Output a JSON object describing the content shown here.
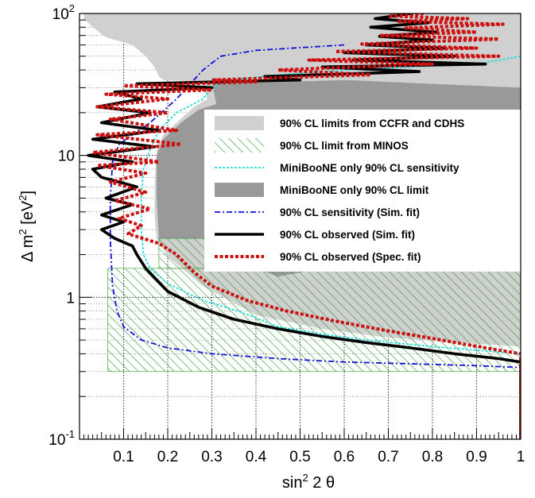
{
  "chart_data": {
    "type": "line",
    "xlabel_main": "sin",
    "xlabel_sup": "2",
    "xlabel_tail": " 2 θ",
    "ylabel_main": "Δ m",
    "ylabel_sup1": "2",
    "ylabel_mid": " [eV",
    "ylabel_sup2": "2",
    "ylabel_end": "]",
    "xlim": [
      0,
      1
    ],
    "ylim": [
      0.1,
      100
    ],
    "yscale": "log",
    "grid": true,
    "legend_position": "right",
    "x_ticks": [
      {
        "value": 0.1,
        "label": "0.1"
      },
      {
        "value": 0.2,
        "label": "0.2"
      },
      {
        "value": 0.3,
        "label": "0.3"
      },
      {
        "value": 0.4,
        "label": "0.4"
      },
      {
        "value": 0.5,
        "label": "0.5"
      },
      {
        "value": 0.6,
        "label": "0.6"
      },
      {
        "value": 0.7,
        "label": "0.7"
      },
      {
        "value": 0.8,
        "label": "0.8"
      },
      {
        "value": 0.9,
        "label": "0.9"
      },
      {
        "value": 1.0,
        "label": "1"
      }
    ],
    "y_ticks": [
      {
        "value": 0.1,
        "base": "10",
        "exp": "-1"
      },
      {
        "value": 1,
        "base": "1",
        "exp": ""
      },
      {
        "value": 10,
        "base": "10",
        "exp": ""
      },
      {
        "value": 100,
        "base": "10",
        "exp": "2"
      }
    ],
    "regions": [
      {
        "name": "90% CL limits from CCFR and CDHS",
        "color": "#d0d0d0",
        "polygon": [
          [
            0.01,
            100
          ],
          [
            0.01,
            92
          ],
          [
            0.03,
            80
          ],
          [
            0.06,
            68
          ],
          [
            0.12,
            60
          ],
          [
            0.15,
            50
          ],
          [
            0.17,
            42
          ],
          [
            0.18,
            36
          ],
          [
            0.19,
            34
          ],
          [
            0.3,
            33
          ],
          [
            0.28,
            31
          ],
          [
            0.29,
            25
          ],
          [
            0.26,
            22
          ],
          [
            0.22,
            17
          ],
          [
            0.19,
            14
          ],
          [
            0.175,
            11
          ],
          [
            0.17,
            6
          ],
          [
            0.17,
            3.8
          ],
          [
            0.175,
            2.6
          ],
          [
            0.2,
            1.95
          ],
          [
            0.28,
            1.2
          ],
          [
            0.4,
            0.75
          ],
          [
            0.55,
            0.6
          ],
          [
            0.7,
            0.52
          ],
          [
            0.85,
            0.48
          ],
          [
            1,
            0.45
          ],
          [
            1,
            100
          ]
        ]
      },
      {
        "name": "MiniBooNE only 90% CL limit",
        "color": "#999999",
        "polygon": [
          [
            0.3,
            33
          ],
          [
            0.33,
            32
          ],
          [
            0.6,
            34
          ],
          [
            1,
            30
          ],
          [
            1,
            1.6
          ],
          [
            0.55,
            1.6
          ],
          [
            0.45,
            1.4
          ],
          [
            0.4,
            1.6
          ],
          [
            0.31,
            1.6
          ],
          [
            0.31,
            2.6
          ],
          [
            0.18,
            2.6
          ],
          [
            0.175,
            5
          ],
          [
            0.175,
            10
          ],
          [
            0.19,
            13
          ],
          [
            0.23,
            17
          ],
          [
            0.27,
            21
          ],
          [
            0.31,
            23
          ]
        ]
      },
      {
        "name": "90% CL limit from MINOS",
        "color": "#2a9a2a",
        "rects": [
          [
            0.064,
            0.3,
            1,
            1.6
          ],
          [
            0.18,
            1.6,
            0.31,
            2.6
          ]
        ]
      }
    ],
    "series": [
      {
        "name": "MiniBooNE only 90% CL sensitivity",
        "color": "#22dddd",
        "dash": "3,2",
        "width": 1.8,
        "points": [
          [
            1,
            50
          ],
          [
            0.9,
            44
          ],
          [
            0.75,
            42
          ],
          [
            0.6,
            40
          ],
          [
            0.5,
            38
          ],
          [
            0.42,
            36
          ],
          [
            0.34,
            34
          ],
          [
            0.3,
            30
          ],
          [
            0.28,
            25
          ],
          [
            0.22,
            20
          ],
          [
            0.18,
            15
          ],
          [
            0.16,
            11
          ],
          [
            0.145,
            8
          ],
          [
            0.14,
            5
          ],
          [
            0.14,
            3
          ],
          [
            0.145,
            2
          ],
          [
            0.16,
            1.6
          ],
          [
            0.2,
            1.25
          ],
          [
            0.28,
            0.95
          ],
          [
            0.36,
            0.8
          ],
          [
            0.45,
            0.62
          ],
          [
            0.55,
            0.55
          ],
          [
            0.65,
            0.5
          ],
          [
            0.8,
            0.45
          ],
          [
            1,
            0.4
          ]
        ]
      },
      {
        "name": "90% CL sensitivity (Sim. fit)",
        "color": "#1010dd",
        "dash": "7,3,2,3",
        "width": 1.8,
        "points": [
          [
            0.6,
            60
          ],
          [
            0.4,
            55
          ],
          [
            0.32,
            50
          ],
          [
            0.28,
            40
          ],
          [
            0.22,
            25
          ],
          [
            0.16,
            17
          ],
          [
            0.12,
            14
          ],
          [
            0.09,
            12
          ],
          [
            0.075,
            9
          ],
          [
            0.07,
            5
          ],
          [
            0.07,
            2.5
          ],
          [
            0.075,
            1.2
          ],
          [
            0.085,
            0.8
          ],
          [
            0.1,
            0.62
          ],
          [
            0.14,
            0.5
          ],
          [
            0.2,
            0.44
          ],
          [
            0.3,
            0.4
          ],
          [
            0.45,
            0.37
          ],
          [
            0.6,
            0.35
          ],
          [
            0.75,
            0.34
          ],
          [
            0.9,
            0.33
          ],
          [
            1,
            0.32
          ]
        ]
      },
      {
        "name": "90% CL observed (Sim. fit)",
        "color": "#000000",
        "dash": "",
        "width": 3.6,
        "points": [
          [
            0.75,
            100
          ],
          [
            0.67,
            92
          ],
          [
            0.79,
            86
          ],
          [
            0.66,
            80
          ],
          [
            0.81,
            74
          ],
          [
            0.68,
            69
          ],
          [
            0.8,
            65
          ],
          [
            0.65,
            60
          ],
          [
            0.83,
            57
          ],
          [
            0.6,
            53
          ],
          [
            0.85,
            50
          ],
          [
            0.62,
            47
          ],
          [
            0.92,
            44
          ],
          [
            0.55,
            42
          ],
          [
            0.77,
            39
          ],
          [
            0.42,
            36
          ],
          [
            0.5,
            34
          ],
          [
            0.32,
            33
          ],
          [
            0.13,
            32
          ],
          [
            0.3,
            30
          ],
          [
            0.08,
            28
          ],
          [
            0.14,
            25
          ],
          [
            0.04,
            22
          ],
          [
            0.16,
            20
          ],
          [
            0.05,
            17
          ],
          [
            0.18,
            15
          ],
          [
            0.03,
            13
          ],
          [
            0.17,
            11.5
          ],
          [
            0.02,
            10
          ],
          [
            0.12,
            9
          ],
          [
            0.03,
            8
          ],
          [
            0.05,
            7
          ],
          [
            0.13,
            6
          ],
          [
            0.06,
            5
          ],
          [
            0.12,
            4.5
          ],
          [
            0.05,
            3.8
          ],
          [
            0.1,
            3.4
          ],
          [
            0.05,
            3.0
          ],
          [
            0.08,
            2.6
          ],
          [
            0.12,
            2.3
          ],
          [
            0.13,
            2.0
          ],
          [
            0.15,
            1.6
          ],
          [
            0.2,
            1.1
          ],
          [
            0.27,
            0.85
          ],
          [
            0.35,
            0.7
          ],
          [
            0.45,
            0.6
          ],
          [
            0.55,
            0.53
          ],
          [
            0.65,
            0.48
          ],
          [
            0.75,
            0.44
          ],
          [
            0.85,
            0.4
          ],
          [
            0.95,
            0.37
          ],
          [
            1,
            0.35
          ],
          [
            1,
            0.1
          ]
        ]
      },
      {
        "name": "90% CL observed (Spec. fit)",
        "color": "#cc1111",
        "dash": "4,2.5",
        "width": 4,
        "points": [
          [
            0.78,
            100
          ],
          [
            0.7,
            96
          ],
          [
            0.88,
            92
          ],
          [
            0.72,
            88
          ],
          [
            0.96,
            84
          ],
          [
            0.74,
            79
          ],
          [
            0.9,
            74
          ],
          [
            0.68,
            70
          ],
          [
            0.95,
            66
          ],
          [
            0.64,
            61
          ],
          [
            0.9,
            57
          ],
          [
            0.58,
            54
          ],
          [
            0.95,
            50
          ],
          [
            0.52,
            47
          ],
          [
            0.8,
            44
          ],
          [
            0.45,
            40
          ],
          [
            0.66,
            37
          ],
          [
            0.3,
            34
          ],
          [
            0.4,
            33
          ],
          [
            0.1,
            31
          ],
          [
            0.3,
            29
          ],
          [
            0.06,
            27
          ],
          [
            0.2,
            25
          ],
          [
            0.04,
            22
          ],
          [
            0.2,
            20
          ],
          [
            0.07,
            18
          ],
          [
            0.22,
            15
          ],
          [
            0.04,
            14
          ],
          [
            0.23,
            12
          ],
          [
            0.03,
            10.5
          ],
          [
            0.18,
            9
          ],
          [
            0.04,
            8.5
          ],
          [
            0.15,
            7.5
          ],
          [
            0.07,
            6.5
          ],
          [
            0.15,
            5.5
          ],
          [
            0.08,
            4.8
          ],
          [
            0.16,
            4.2
          ],
          [
            0.09,
            3.6
          ],
          [
            0.14,
            3.2
          ],
          [
            0.11,
            2.8
          ],
          [
            0.18,
            2.4
          ],
          [
            0.22,
            2.0
          ],
          [
            0.26,
            1.5
          ],
          [
            0.3,
            1.2
          ],
          [
            0.38,
            0.95
          ],
          [
            0.47,
            0.8
          ],
          [
            0.58,
            0.68
          ],
          [
            0.7,
            0.58
          ],
          [
            0.82,
            0.5
          ],
          [
            0.92,
            0.44
          ],
          [
            1,
            0.4
          ],
          [
            1,
            0.1
          ]
        ]
      }
    ],
    "legend": [
      {
        "label": "90% CL limits from CCFR and CDHS",
        "kind": "fill",
        "color": "#d0d0d0"
      },
      {
        "label": "90% CL limit from MINOS",
        "kind": "hatch",
        "color": "#2a9a2a"
      },
      {
        "label": "MiniBooNE only 90% CL sensitivity",
        "kind": "line",
        "color": "#22dddd",
        "dash": "3,2",
        "width": 1.8
      },
      {
        "label": "MiniBooNE only 90% CL limit",
        "kind": "fill",
        "color": "#999999"
      },
      {
        "label": "90% CL sensitivity (Sim. fit)",
        "kind": "line",
        "color": "#1010dd",
        "dash": "7,3,2,3",
        "width": 1.8
      },
      {
        "label": "90% CL observed (Sim. fit)",
        "kind": "line",
        "color": "#000000",
        "dash": "",
        "width": 3.6
      },
      {
        "label": "90% CL observed (Spec. fit)",
        "kind": "line",
        "color": "#cc1111",
        "dash": "4,2.5",
        "width": 4
      }
    ]
  }
}
